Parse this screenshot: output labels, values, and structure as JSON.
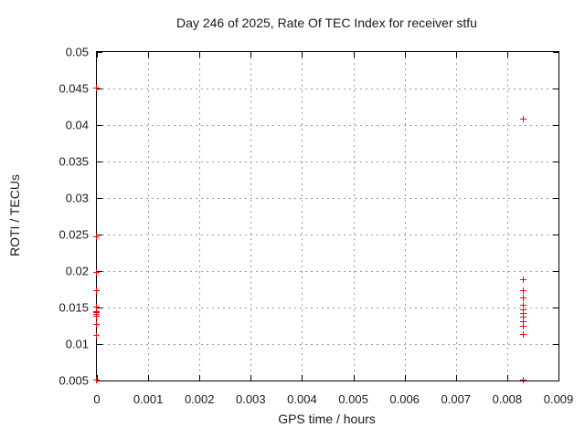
{
  "chart_data": {
    "type": "scatter",
    "title": "Day 246 of 2025, Rate Of TEC Index for receiver stfu",
    "xlabel": "GPS time / hours",
    "ylabel": "ROTI / TECUs",
    "xlim": [
      0,
      0.009
    ],
    "ylim": [
      0.005,
      0.05
    ],
    "grid": true,
    "legend": "none",
    "marker": {
      "symbol": "plus",
      "color": "#ff0000"
    },
    "xticks": [
      {
        "v": 0,
        "label": "0"
      },
      {
        "v": 0.001,
        "label": "0.001"
      },
      {
        "v": 0.002,
        "label": "0.002"
      },
      {
        "v": 0.003,
        "label": "0.003"
      },
      {
        "v": 0.004,
        "label": "0.004"
      },
      {
        "v": 0.005,
        "label": "0.005"
      },
      {
        "v": 0.006,
        "label": "0.006"
      },
      {
        "v": 0.007,
        "label": "0.007"
      },
      {
        "v": 0.008,
        "label": "0.008"
      },
      {
        "v": 0.009,
        "label": "0.009"
      }
    ],
    "yticks": [
      {
        "v": 0.005,
        "label": "0.005"
      },
      {
        "v": 0.01,
        "label": "0.01"
      },
      {
        "v": 0.015,
        "label": "0.015"
      },
      {
        "v": 0.02,
        "label": "0.02"
      },
      {
        "v": 0.025,
        "label": "0.025"
      },
      {
        "v": 0.03,
        "label": "0.03"
      },
      {
        "v": 0.035,
        "label": "0.035"
      },
      {
        "v": 0.04,
        "label": "0.04"
      },
      {
        "v": 0.045,
        "label": "0.045"
      },
      {
        "v": 0.05,
        "label": "0.05"
      }
    ],
    "series": [
      {
        "name": "ROTI",
        "points": [
          [
            0,
            0.045
          ],
          [
            0,
            0.0246
          ],
          [
            0,
            0.0197
          ],
          [
            0,
            0.0173
          ],
          [
            0,
            0.015
          ],
          [
            0,
            0.0144
          ],
          [
            0,
            0.0142
          ],
          [
            0,
            0.014
          ],
          [
            0,
            0.0138
          ],
          [
            0,
            0.0137
          ],
          [
            0,
            0.0126
          ],
          [
            0,
            0.0111
          ],
          [
            0,
            0.005
          ],
          [
            0.00833,
            0.0408
          ],
          [
            0.00833,
            0.0187
          ],
          [
            0.00833,
            0.0172
          ],
          [
            0.00833,
            0.0163
          ],
          [
            0.00833,
            0.0152
          ],
          [
            0.00833,
            0.0146
          ],
          [
            0.00833,
            0.0141
          ],
          [
            0.00833,
            0.0136
          ],
          [
            0.00833,
            0.013
          ],
          [
            0.00833,
            0.0124
          ],
          [
            0.00833,
            0.0113
          ],
          [
            0.00833,
            0.005
          ]
        ]
      }
    ]
  }
}
